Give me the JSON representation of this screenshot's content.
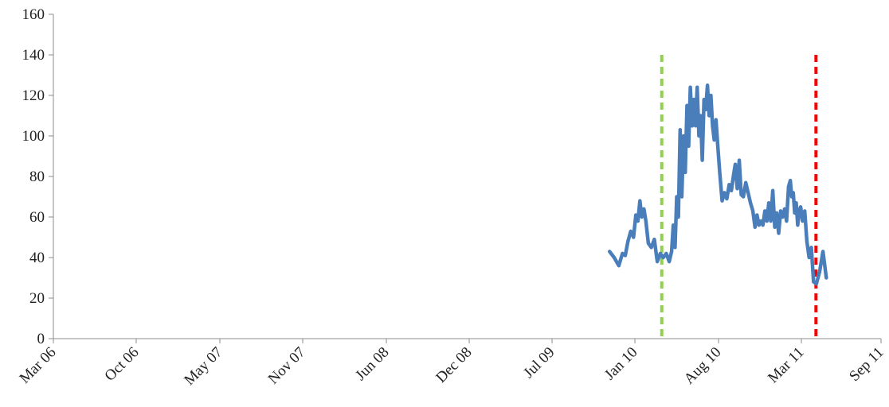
{
  "chart_data": {
    "type": "line",
    "title": "",
    "xlabel": "",
    "ylabel": "",
    "y_ticks": [
      "0",
      "20",
      "40",
      "60",
      "80",
      "100",
      "120",
      "140",
      "160"
    ],
    "ylim": [
      0,
      160
    ],
    "x_ticks": [
      "Mar 06",
      "Oct 06",
      "May 07",
      "Nov 07",
      "Jun 08",
      "Dec 08",
      "Jul 09",
      "Jan 10",
      "Aug 10",
      "Mar 11",
      "Sep 11"
    ],
    "grid": false,
    "legend": "none",
    "series": [
      {
        "color": "#4a7ebb",
        "points": [
          [
            "Nov 09",
            43
          ],
          [
            "Nov 09",
            40
          ],
          [
            "Nov 09",
            36
          ],
          [
            "Dec 09",
            42
          ],
          [
            "Dec 09",
            41
          ],
          [
            "Dec 09",
            48
          ],
          [
            "Dec 09",
            53
          ],
          [
            "Dec 09",
            50
          ],
          [
            "Jan 10",
            61
          ],
          [
            "Jan 10",
            58
          ],
          [
            "Jan 10",
            68
          ],
          [
            "Jan 10",
            60
          ],
          [
            "Jan 10",
            64
          ],
          [
            "Jan 10",
            58
          ],
          [
            "Feb 10",
            47
          ],
          [
            "Feb 10",
            45
          ],
          [
            "Feb 10",
            49
          ],
          [
            "Feb 10",
            38
          ],
          [
            "Mar 10",
            42
          ],
          [
            "Mar 10",
            40
          ],
          [
            "Mar 10",
            42
          ],
          [
            "Mar 10",
            38
          ],
          [
            "Apr 10",
            43
          ],
          [
            "Apr 10",
            56
          ],
          [
            "Apr 10",
            45
          ],
          [
            "Apr 10",
            70
          ],
          [
            "Apr 10",
            60
          ],
          [
            "Apr 10",
            103
          ],
          [
            "Apr 10",
            70
          ],
          [
            "May 10",
            100
          ],
          [
            "May 10",
            82
          ],
          [
            "May 10",
            115
          ],
          [
            "May 10",
            95
          ],
          [
            "May 10",
            124
          ],
          [
            "May 10",
            105
          ],
          [
            "May 10",
            118
          ],
          [
            "Jun 10",
            105
          ],
          [
            "Jun 10",
            124
          ],
          [
            "Jun 10",
            100
          ],
          [
            "Jun 10",
            110
          ],
          [
            "Jun 10",
            88
          ],
          [
            "Jun 10",
            118
          ],
          [
            "Jun 10",
            113
          ],
          [
            "Jul 10",
            125
          ],
          [
            "Jul 10",
            110
          ],
          [
            "Jul 10",
            120
          ],
          [
            "Jul 10",
            105
          ],
          [
            "Jul 10",
            98
          ],
          [
            "Jul 10",
            108
          ],
          [
            "Jul 10",
            96
          ],
          [
            "Aug 10",
            82
          ],
          [
            "Aug 10",
            68
          ],
          [
            "Aug 10",
            72
          ],
          [
            "Aug 10",
            69
          ],
          [
            "Aug 10",
            76
          ],
          [
            "Sep 10",
            73
          ],
          [
            "Sep 10",
            80
          ],
          [
            "Sep 10",
            86
          ],
          [
            "Sep 10",
            74
          ],
          [
            "Sep 10",
            88
          ],
          [
            "Sep 10",
            71
          ],
          [
            "Oct 10",
            70
          ],
          [
            "Oct 10",
            77
          ],
          [
            "Oct 10",
            72
          ],
          [
            "Oct 10",
            67
          ],
          [
            "Oct 10",
            63
          ],
          [
            "Nov 10",
            55
          ],
          [
            "Nov 10",
            61
          ],
          [
            "Nov 10",
            56
          ],
          [
            "Nov 10",
            58
          ],
          [
            "Nov 10",
            56
          ],
          [
            "Nov 10",
            63
          ],
          [
            "Dec 10",
            58
          ],
          [
            "Dec 10",
            67
          ],
          [
            "Dec 10",
            58
          ],
          [
            "Dec 10",
            73
          ],
          [
            "Dec 10",
            55
          ],
          [
            "Dec 10",
            62
          ],
          [
            "Jan 11",
            52
          ],
          [
            "Jan 11",
            63
          ],
          [
            "Jan 11",
            60
          ],
          [
            "Jan 11",
            64
          ],
          [
            "Jan 11",
            58
          ],
          [
            "Jan 11",
            75
          ],
          [
            "Feb 11",
            78
          ],
          [
            "Feb 11",
            70
          ],
          [
            "Feb 11",
            72
          ],
          [
            "Feb 11",
            62
          ],
          [
            "Feb 11",
            67
          ],
          [
            "Feb 11",
            56
          ],
          [
            "Feb 11",
            63
          ],
          [
            "Feb 11",
            65
          ],
          [
            "Mar 11",
            58
          ],
          [
            "Mar 11",
            63
          ],
          [
            "Mar 11",
            48
          ],
          [
            "Mar 11",
            40
          ],
          [
            "Mar 11",
            45
          ],
          [
            "Mar 11",
            28
          ],
          [
            "Apr 11",
            27
          ],
          [
            "Apr 11",
            33
          ],
          [
            "Apr 11",
            43
          ],
          [
            "Apr 11",
            30
          ]
        ]
      }
    ],
    "reference_lines": [
      {
        "x": "Mar 10",
        "y_top": 140,
        "color": "#92d050",
        "style": "dashed"
      },
      {
        "x": "Apr 11",
        "y_top": 140,
        "color": "#ff0000",
        "style": "dashed"
      }
    ]
  }
}
